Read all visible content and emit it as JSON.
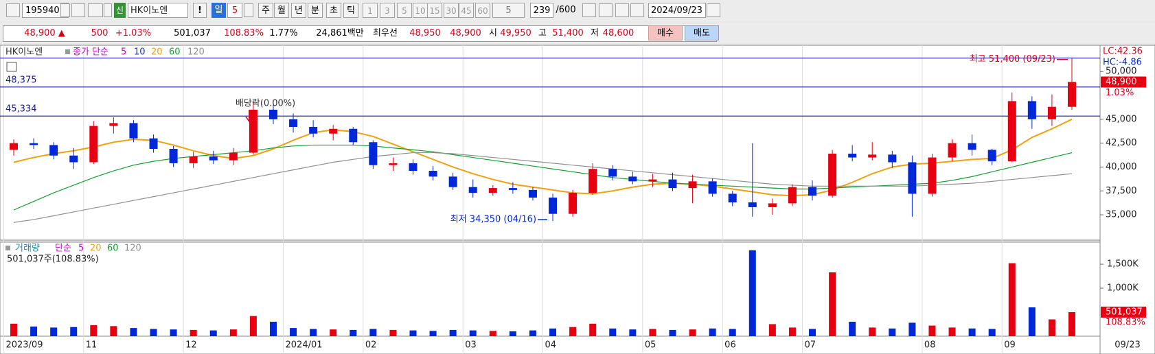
{
  "toolbar": {
    "code": "195940",
    "badge": "신",
    "name": "HK이노엔",
    "alert": "!",
    "period": "일",
    "period_n": "5",
    "units": [
      "주",
      "월",
      "년",
      "분",
      "초",
      "틱"
    ],
    "intervals": [
      "1",
      "3",
      "5",
      "10",
      "15",
      "30",
      "45",
      "60"
    ],
    "interval_sel": "5",
    "count": "239",
    "count_max": "/600",
    "date": "2024/09/23"
  },
  "quote": {
    "price": "48,900 ▲",
    "change": "500",
    "change_pct": "+1.03%",
    "volume": "501,037",
    "volume_ratio": "108.83%",
    "turnover": "1.77%",
    "amount": "24,861백만",
    "best_label": "최우선",
    "best_ask": "48,950",
    "best_bid": "48,900",
    "open_label": "시",
    "open": "49,950",
    "high_label": "고",
    "high": "51,400",
    "low_label": "저",
    "low": "48,600",
    "buy": "매수",
    "sell": "매도"
  },
  "chart_data": [
    {
      "type": "candlestick",
      "name": "HK이노엔",
      "indicator": "종가 단순",
      "categories": [
        "2023/09",
        null,
        null,
        null,
        "11",
        null,
        null,
        null,
        null,
        "12",
        null,
        null,
        null,
        null,
        "2024/01",
        null,
        null,
        null,
        "02",
        null,
        null,
        null,
        null,
        "03",
        null,
        null,
        null,
        "04",
        null,
        null,
        null,
        null,
        "05",
        null,
        null,
        null,
        "06",
        null,
        null,
        null,
        "07",
        null,
        null,
        null,
        null,
        null,
        "08",
        null,
        null,
        null,
        "09",
        null,
        null,
        null
      ],
      "open": [
        41800,
        42500,
        42300,
        41200,
        40500,
        44300,
        44600,
        43000,
        41900,
        40400,
        41100,
        40700,
        41500,
        46000,
        45000,
        44200,
        43500,
        44000,
        42600,
        40200,
        40400,
        39600,
        39000,
        37900,
        37300,
        37800,
        37600,
        36800,
        35100,
        37300,
        39800,
        39000,
        38500,
        38700,
        37800,
        38500,
        37200,
        36300,
        35800,
        36200,
        37900,
        37000,
        41400,
        41000,
        41300,
        40500,
        37200,
        41000,
        42500,
        41800,
        40600,
        46900,
        45000,
        46300
      ],
      "high": [
        42900,
        43000,
        42600,
        42000,
        44800,
        45200,
        44900,
        43400,
        42200,
        41600,
        41700,
        42000,
        46800,
        46500,
        45600,
        44900,
        44400,
        44200,
        42800,
        41000,
        40800,
        40100,
        39400,
        38700,
        38100,
        38400,
        37900,
        37200,
        37600,
        40400,
        40200,
        39500,
        39300,
        39400,
        39200,
        38800,
        37500,
        42500,
        36700,
        38200,
        38600,
        41800,
        42300,
        42600,
        41700,
        41200,
        41400,
        42900,
        43400,
        41900,
        47800,
        47400,
        47600,
        51400
      ],
      "low": [
        41200,
        41900,
        40800,
        39800,
        40300,
        43500,
        42600,
        41500,
        40000,
        39900,
        40300,
        40200,
        41300,
        44500,
        43600,
        43100,
        42800,
        42300,
        39800,
        39600,
        39200,
        38600,
        37600,
        36800,
        37000,
        37200,
        36500,
        34350,
        34800,
        37100,
        38600,
        38200,
        37900,
        37500,
        36200,
        36900,
        35900,
        34800,
        35000,
        35900,
        36500,
        36800,
        40600,
        40700,
        39900,
        34800,
        36900,
        40600,
        41200,
        40200,
        40500,
        44000,
        44300,
        46000
      ],
      "close": [
        42500,
        42300,
        41200,
        40500,
        44300,
        44600,
        43000,
        41900,
        40400,
        41100,
        40700,
        41500,
        46000,
        45000,
        44200,
        43500,
        44000,
        42600,
        40200,
        40400,
        39600,
        39000,
        37900,
        37300,
        37800,
        37600,
        36800,
        35100,
        37300,
        39800,
        39000,
        38500,
        38700,
        37800,
        38500,
        37200,
        36300,
        35800,
        36200,
        37900,
        37000,
        41400,
        41000,
        41300,
        40500,
        37200,
        41000,
        42500,
        41800,
        40600,
        46900,
        45000,
        46300,
        48900
      ],
      "colors": {
        "up": "#e60012",
        "down": "#0028d8"
      },
      "legend_only": [
        {
          "name": "5",
          "color": "#c800c8"
        },
        {
          "name": "10",
          "color": "#1030e0"
        }
      ],
      "series": [
        {
          "name": "20",
          "color": "#f0a010",
          "values": [
            40500,
            41000,
            41400,
            41700,
            42100,
            42600,
            42900,
            42800,
            42300,
            41700,
            41200,
            40900,
            41200,
            41900,
            42800,
            43600,
            43900,
            43700,
            43200,
            42400,
            41600,
            40800,
            40000,
            39300,
            38700,
            38200,
            37900,
            37600,
            37300,
            37200,
            37500,
            37900,
            38200,
            38300,
            38200,
            38000,
            37700,
            37400,
            37100,
            37000,
            37100,
            37600,
            38400,
            39300,
            40000,
            40300,
            40400,
            40600,
            40800,
            40900,
            41800,
            43100,
            44000,
            45000
          ]
        },
        {
          "name": "60",
          "color": "#10a030",
          "values": [
            35500,
            36400,
            37300,
            38100,
            38900,
            39600,
            40200,
            40600,
            40900,
            41100,
            41300,
            41500,
            41700,
            42000,
            42200,
            42300,
            42300,
            42300,
            42200,
            42000,
            41800,
            41600,
            41300,
            41000,
            40700,
            40400,
            40100,
            39800,
            39500,
            39200,
            38900,
            38700,
            38500,
            38300,
            38200,
            38100,
            38000,
            37900,
            37800,
            37700,
            37700,
            37800,
            37900,
            38000,
            38100,
            38200,
            38300,
            38600,
            39000,
            39500,
            40000,
            40500,
            41000,
            41500
          ]
        },
        {
          "name": "120",
          "color": "#909090",
          "values": [
            34200,
            34500,
            34900,
            35300,
            35700,
            36100,
            36500,
            36900,
            37300,
            37700,
            38100,
            38500,
            38900,
            39300,
            39700,
            40100,
            40500,
            40800,
            41100,
            41300,
            41500,
            41500,
            41400,
            41200,
            41000,
            40800,
            40600,
            40400,
            40200,
            40000,
            39800,
            39600,
            39400,
            39200,
            39000,
            38800,
            38600,
            38400,
            38200,
            38100,
            38000,
            38000,
            38000,
            38000,
            38000,
            38000,
            38100,
            38200,
            38300,
            38500,
            38700,
            38900,
            39100,
            39300
          ]
        }
      ],
      "ylim": [
        32350,
        52600
      ],
      "yticks": [
        {
          "value": 35000,
          "label": "35,000"
        },
        {
          "value": 37500,
          "label": "37,500"
        },
        {
          "value": 40000,
          "label": "40,000"
        },
        {
          "value": 42500,
          "label": "42,500"
        },
        {
          "value": 45000,
          "label": "45,000"
        },
        {
          "value": 50000,
          "label": "50,000"
        }
      ],
      "hlines": [
        {
          "value": 51400
        },
        {
          "value": 48375,
          "label": "48,375"
        },
        {
          "value": 45334,
          "label": "45,334"
        }
      ],
      "annotations": {
        "high": "최고 51,400 (09/23)",
        "low": "최저 34,350 (04/16)",
        "ex_dividend": "배당락(0.00%)"
      },
      "last_label": "48,900",
      "last_change": "1.03%",
      "lc": "LC:42.36",
      "hc": "HC:-4.86",
      "x_end": "09/23"
    },
    {
      "type": "bar",
      "name": "거래량",
      "indicator": "단순",
      "legend_only": [
        {
          "name": "5",
          "color": "#c800c8"
        },
        {
          "name": "20",
          "color": "#f0a010"
        },
        {
          "name": "60",
          "color": "#10a030"
        },
        {
          "name": "120",
          "color": "#909090"
        }
      ],
      "values": [
        260000,
        200000,
        180000,
        190000,
        230000,
        210000,
        170000,
        150000,
        140000,
        130000,
        120000,
        140000,
        420000,
        300000,
        170000,
        150000,
        140000,
        130000,
        150000,
        130000,
        120000,
        110000,
        130000,
        120000,
        110000,
        100000,
        120000,
        160000,
        190000,
        260000,
        160000,
        140000,
        150000,
        130000,
        140000,
        160000,
        150000,
        1790000,
        250000,
        180000,
        150000,
        1330000,
        300000,
        180000,
        160000,
        280000,
        220000,
        180000,
        160000,
        150000,
        1520000,
        600000,
        350000,
        501037
      ],
      "annotation": "501,037주(108.83%)",
      "last_label": "501,037",
      "last_ratio": "108.83%",
      "ylim": [
        0,
        1930000
      ],
      "yticks": [
        {
          "value": 1000000,
          "label": "1,000K"
        },
        {
          "value": 1500000,
          "label": "1,500K"
        }
      ]
    }
  ]
}
